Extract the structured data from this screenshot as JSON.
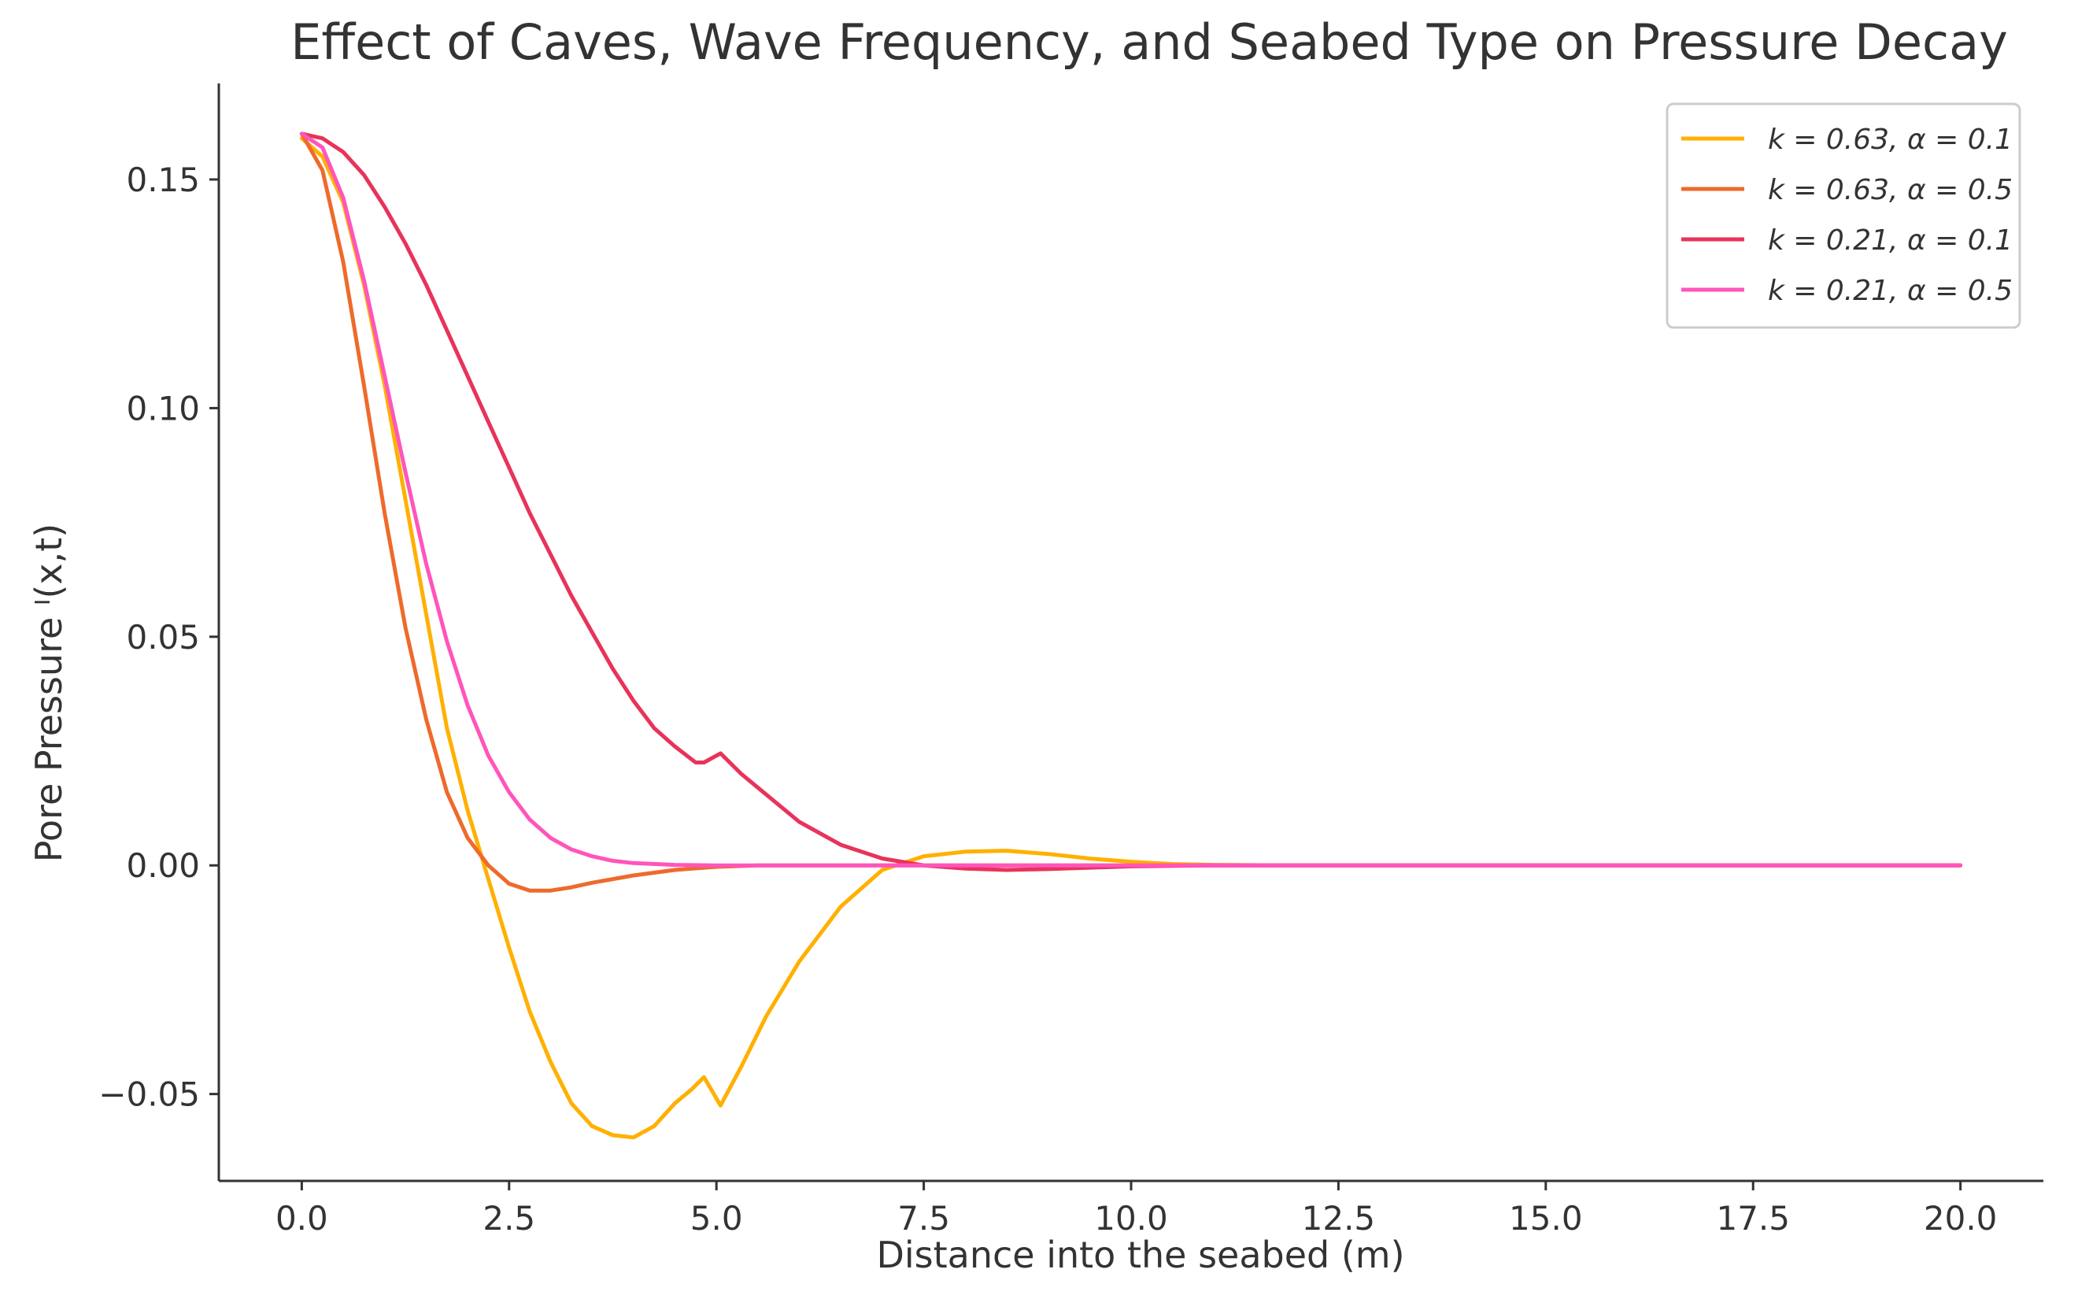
{
  "chart_data": {
    "type": "line",
    "title": "Effect of Caves, Wave Frequency, and Seabed Type on Pressure Decay",
    "xlabel": "Distance into the seabed (m)",
    "ylabel": "Pore Pressure  ᴵ(x,t)",
    "xlim": [
      -1.0,
      21.0
    ],
    "ylim": [
      -0.069,
      0.171
    ],
    "xticks": [
      0.0,
      2.5,
      5.0,
      7.5,
      10.0,
      12.5,
      15.0,
      17.5,
      20.0
    ],
    "xtick_labels": [
      "0.0",
      "2.5",
      "5.0",
      "7.5",
      "10.0",
      "12.5",
      "15.0",
      "17.5",
      "20.0"
    ],
    "yticks": [
      -0.05,
      0.0,
      0.05,
      0.1,
      0.15
    ],
    "ytick_labels": [
      "−0.05",
      "0.00",
      "0.05",
      "0.10",
      "0.15"
    ],
    "grid": false,
    "legend_position": "top-right",
    "series": [
      {
        "name": "k = 0.63, α = 0.1",
        "color": "#ffb000",
        "x": [
          0,
          0.25,
          0.5,
          0.75,
          1.0,
          1.25,
          1.5,
          1.75,
          2.0,
          2.25,
          2.5,
          2.75,
          3.0,
          3.25,
          3.5,
          3.75,
          4.0,
          4.25,
          4.5,
          4.7,
          4.85,
          5.05,
          5.3,
          5.6,
          6.0,
          6.5,
          7.0,
          7.5,
          8.0,
          8.5,
          9.0,
          9.5,
          10.0,
          10.5,
          11.0,
          12.0,
          13.0,
          15.0,
          17.5,
          20.0
        ],
        "y": [
          0.159,
          0.155,
          0.145,
          0.127,
          0.105,
          0.08,
          0.055,
          0.03,
          0.012,
          -0.003,
          -0.018,
          -0.032,
          -0.043,
          -0.052,
          -0.057,
          -0.059,
          -0.0595,
          -0.057,
          -0.052,
          -0.049,
          -0.0463,
          -0.0525,
          -0.044,
          -0.033,
          -0.021,
          -0.009,
          -0.001,
          0.002,
          0.003,
          0.0032,
          0.0025,
          0.0015,
          0.0008,
          0.0003,
          0.0001,
          0.0,
          0.0,
          0.0,
          0.0,
          0.0
        ]
      },
      {
        "name": "k = 0.63, α = 0.5",
        "color": "#ee6a2c",
        "x": [
          0,
          0.25,
          0.5,
          0.75,
          1.0,
          1.25,
          1.5,
          1.75,
          2.0,
          2.25,
          2.5,
          2.75,
          3.0,
          3.25,
          3.5,
          4.0,
          4.5,
          5.0,
          5.5,
          6.0,
          7.0,
          8.0,
          10.0,
          15.0,
          20.0
        ],
        "y": [
          0.16,
          0.152,
          0.132,
          0.105,
          0.077,
          0.052,
          0.032,
          0.016,
          0.006,
          0.0,
          -0.004,
          -0.0055,
          -0.0055,
          -0.0048,
          -0.0038,
          -0.0022,
          -0.001,
          -0.0003,
          0.0,
          0.0,
          0.0,
          0.0,
          0.0,
          0.0,
          0.0
        ]
      },
      {
        "name": "k = 0.21, α = 0.1",
        "color": "#e8335a",
        "x": [
          0,
          0.25,
          0.5,
          0.75,
          1.0,
          1.25,
          1.5,
          1.75,
          2.0,
          2.25,
          2.5,
          2.75,
          3.0,
          3.25,
          3.5,
          3.75,
          4.0,
          4.25,
          4.5,
          4.75,
          4.85,
          5.05,
          5.3,
          5.6,
          6.0,
          6.5,
          7.0,
          7.5,
          8.0,
          8.5,
          9.0,
          9.5,
          10.0,
          11.0,
          12.0,
          15.0,
          20.0
        ],
        "y": [
          0.16,
          0.159,
          0.156,
          0.151,
          0.144,
          0.136,
          0.127,
          0.117,
          0.107,
          0.097,
          0.087,
          0.077,
          0.068,
          0.059,
          0.051,
          0.043,
          0.036,
          0.03,
          0.026,
          0.0225,
          0.0225,
          0.0245,
          0.02,
          0.0155,
          0.0095,
          0.0045,
          0.0015,
          0.0,
          -0.0007,
          -0.001,
          -0.0008,
          -0.0005,
          -0.0002,
          0.0,
          0.0,
          0.0,
          0.0
        ]
      },
      {
        "name": "k = 0.21, α = 0.5",
        "color": "#ff55bb",
        "x": [
          0,
          0.25,
          0.5,
          0.75,
          1.0,
          1.25,
          1.5,
          1.75,
          2.0,
          2.25,
          2.5,
          2.75,
          3.0,
          3.25,
          3.5,
          3.75,
          4.0,
          4.5,
          5.0,
          5.5,
          6.0,
          7.0,
          10.0,
          15.0,
          20.0
        ],
        "y": [
          0.16,
          0.157,
          0.146,
          0.128,
          0.107,
          0.086,
          0.066,
          0.049,
          0.035,
          0.024,
          0.016,
          0.01,
          0.006,
          0.0035,
          0.002,
          0.001,
          0.0005,
          0.0001,
          0.0,
          0.0,
          0.0,
          0.0,
          0.0,
          0.0,
          0.0
        ]
      }
    ]
  }
}
